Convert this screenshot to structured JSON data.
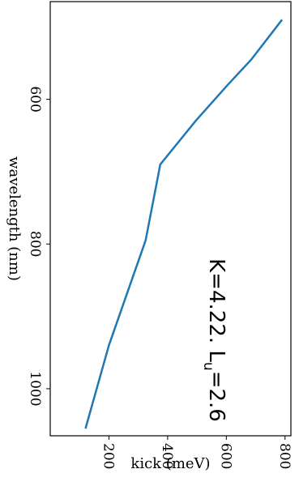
{
  "chart_data": {
    "type": "line",
    "xlabel": "wavelength (nm)",
    "ylabel": "kick (meV)",
    "xlim": [
      465,
      1065
    ],
    "ylim": [
      0,
      820
    ],
    "x_ticks": [
      600,
      800,
      1000
    ],
    "y_ticks": [
      200,
      400,
      600,
      800
    ],
    "x": [
      490,
      545,
      580,
      630,
      690,
      795,
      940,
      1055
    ],
    "y": [
      790,
      685,
      605,
      495,
      375,
      325,
      200,
      120
    ],
    "annotation": {
      "text": "K=4.22. L",
      "subscript": "u",
      "suffix": "=2.6"
    },
    "colors": {
      "line": "#1f77b4"
    },
    "grid": false
  }
}
